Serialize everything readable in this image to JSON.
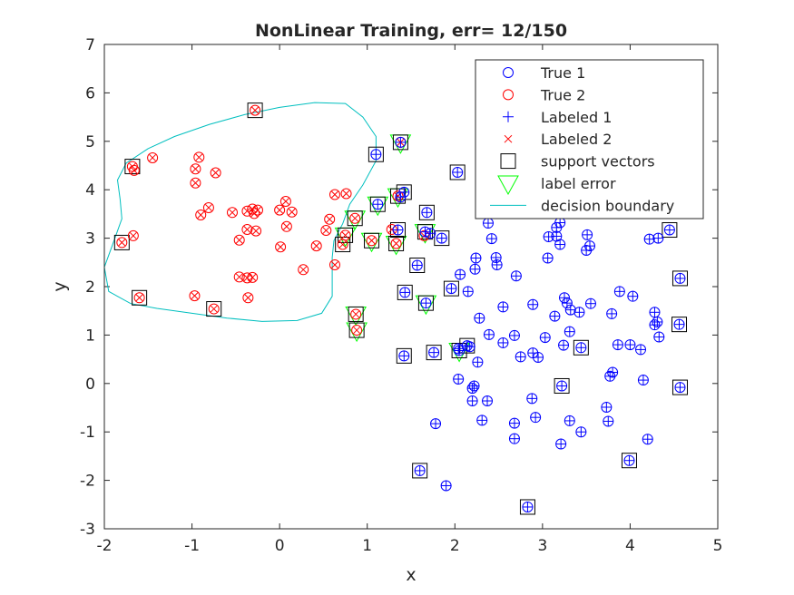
{
  "chart_data": {
    "type": "scatter",
    "title": "NonLinear Training, err= 12/150",
    "xlabel": "x",
    "ylabel": "y",
    "xlim": [
      -2,
      5
    ],
    "ylim": [
      -3,
      7
    ],
    "xticks": [
      -2,
      -1,
      0,
      1,
      2,
      3,
      4,
      5
    ],
    "yticks": [
      -3,
      -2,
      -1,
      0,
      1,
      2,
      3,
      4,
      5,
      6,
      7
    ],
    "legend_position": "top-right",
    "colors": {
      "class1": "#0000ff",
      "class2": "#ff0000",
      "support": "#000000",
      "error": "#00ff00",
      "boundary": "#00bfbf"
    },
    "legend": [
      {
        "label": "True 1",
        "marker": "circle",
        "color": "#0000ff"
      },
      {
        "label": "True 2",
        "marker": "circle",
        "color": "#ff0000"
      },
      {
        "label": "Labeled 1",
        "marker": "plus",
        "color": "#0000ff"
      },
      {
        "label": "Labeled 2",
        "marker": "cross",
        "color": "#ff0000"
      },
      {
        "label": "support vectors",
        "marker": "square",
        "color": "#000000"
      },
      {
        "label": "label error",
        "marker": "triangle-down",
        "color": "#00ff00"
      },
      {
        "label": "decision boundary",
        "marker": "line",
        "color": "#00bfbf"
      }
    ],
    "series": [
      {
        "name": "True 2",
        "points": [
          [
            -1.68,
            4.48
          ],
          [
            -1.66,
            4.4
          ],
          [
            -1.45,
            4.66
          ],
          [
            -1.8,
            2.91
          ],
          [
            -1.67,
            3.05
          ],
          [
            -1.6,
            1.77
          ],
          [
            -0.92,
            4.67
          ],
          [
            -0.96,
            4.43
          ],
          [
            -0.96,
            4.14
          ],
          [
            -0.73,
            4.35
          ],
          [
            -0.81,
            3.63
          ],
          [
            -0.9,
            3.48
          ],
          [
            -0.97,
            1.81
          ],
          [
            -0.75,
            1.54
          ],
          [
            -0.54,
            3.53
          ],
          [
            -0.28,
            5.64
          ],
          [
            -0.37,
            3.56
          ],
          [
            -0.31,
            3.6
          ],
          [
            -0.29,
            3.51
          ],
          [
            -0.25,
            3.58
          ],
          [
            -0.37,
            3.18
          ],
          [
            -0.27,
            3.15
          ],
          [
            -0.46,
            2.96
          ],
          [
            -0.46,
            2.2
          ],
          [
            -0.37,
            2.18
          ],
          [
            -0.31,
            2.19
          ],
          [
            -0.36,
            1.77
          ],
          [
            0.0,
            3.58
          ],
          [
            0.07,
            3.76
          ],
          [
            0.14,
            3.54
          ],
          [
            0.08,
            3.24
          ],
          [
            0.01,
            2.82
          ],
          [
            0.27,
            2.35
          ],
          [
            0.42,
            2.84
          ],
          [
            0.53,
            3.16
          ],
          [
            0.57,
            3.39
          ],
          [
            0.63,
            2.45
          ],
          [
            0.63,
            3.9
          ],
          [
            0.76,
            3.92
          ],
          [
            0.72,
            2.87
          ],
          [
            0.75,
            3.06
          ],
          [
            0.86,
            3.41
          ],
          [
            1.05,
            2.95
          ],
          [
            0.87,
            1.43
          ],
          [
            0.88,
            1.1
          ],
          [
            1.35,
            3.87
          ],
          [
            1.33,
            2.89
          ],
          [
            1.28,
            3.18
          ],
          [
            1.65,
            3.05
          ],
          [
            1.38,
            4.98
          ]
        ]
      },
      {
        "name": "True 1",
        "points": [
          [
            1.1,
            4.73
          ],
          [
            1.12,
            3.7
          ],
          [
            1.38,
            3.85
          ],
          [
            1.42,
            3.95
          ],
          [
            1.68,
            3.53
          ],
          [
            1.35,
            3.17
          ],
          [
            1.66,
            3.13
          ],
          [
            1.72,
            3.1
          ],
          [
            1.85,
            3.0
          ],
          [
            1.43,
            1.88
          ],
          [
            1.57,
            2.44
          ],
          [
            1.42,
            0.57
          ],
          [
            1.67,
            1.66
          ],
          [
            1.78,
            -0.83
          ],
          [
            1.9,
            -2.11
          ],
          [
            1.6,
            -1.8
          ],
          [
            1.76,
            0.64
          ],
          [
            2.03,
            4.36
          ],
          [
            1.96,
            1.96
          ],
          [
            2.06,
            2.25
          ],
          [
            2.15,
            1.9
          ],
          [
            2.23,
            2.36
          ],
          [
            2.24,
            2.59
          ],
          [
            2.42,
            2.99
          ],
          [
            2.38,
            3.31
          ],
          [
            2.48,
            2.45
          ],
          [
            2.47,
            2.6
          ],
          [
            2.7,
            2.22
          ],
          [
            2.04,
            0.72
          ],
          [
            2.14,
            0.78
          ],
          [
            2.17,
            0.76
          ],
          [
            2.26,
            0.44
          ],
          [
            2.28,
            1.35
          ],
          [
            2.55,
            1.58
          ],
          [
            2.39,
            1.01
          ],
          [
            2.55,
            0.84
          ],
          [
            2.68,
            0.99
          ],
          [
            2.75,
            0.55
          ],
          [
            2.89,
            0.63
          ],
          [
            2.95,
            0.54
          ],
          [
            2.04,
            0.09
          ],
          [
            2.2,
            -0.1
          ],
          [
            2.22,
            -0.05
          ],
          [
            2.2,
            -0.36
          ],
          [
            2.37,
            -0.36
          ],
          [
            2.31,
            -0.76
          ],
          [
            2.68,
            -0.82
          ],
          [
            2.68,
            -1.14
          ],
          [
            2.88,
            -0.31
          ],
          [
            2.92,
            -0.7
          ],
          [
            2.83,
            -2.55
          ],
          [
            3.2,
            3.32
          ],
          [
            3.16,
            3.22
          ],
          [
            3.07,
            3.03
          ],
          [
            3.16,
            3.04
          ],
          [
            3.2,
            2.87
          ],
          [
            3.06,
            2.59
          ],
          [
            3.51,
            3.07
          ],
          [
            3.54,
            2.84
          ],
          [
            3.5,
            2.75
          ],
          [
            2.89,
            1.63
          ],
          [
            3.03,
            0.95
          ],
          [
            3.14,
            1.39
          ],
          [
            3.25,
            1.77
          ],
          [
            3.28,
            1.66
          ],
          [
            3.32,
            1.52
          ],
          [
            3.31,
            1.07
          ],
          [
            3.42,
            1.47
          ],
          [
            3.55,
            1.65
          ],
          [
            3.24,
            0.79
          ],
          [
            3.44,
            0.74
          ],
          [
            3.22,
            -0.05
          ],
          [
            3.31,
            -0.77
          ],
          [
            3.44,
            -1.0
          ],
          [
            3.21,
            -1.25
          ],
          [
            3.79,
            1.44
          ],
          [
            3.88,
            1.9
          ],
          [
            4.03,
            1.8
          ],
          [
            4.28,
            1.47
          ],
          [
            4.31,
            1.27
          ],
          [
            4.28,
            1.21
          ],
          [
            4.33,
            0.96
          ],
          [
            3.86,
            0.8
          ],
          [
            4.0,
            0.8
          ],
          [
            4.12,
            0.7
          ],
          [
            3.77,
            0.15
          ],
          [
            3.8,
            0.23
          ],
          [
            4.15,
            0.07
          ],
          [
            3.73,
            -0.49
          ],
          [
            3.75,
            -0.78
          ],
          [
            4.2,
            -1.15
          ],
          [
            3.99,
            -1.59
          ],
          [
            4.22,
            2.98
          ],
          [
            4.32,
            3.0
          ],
          [
            4.45,
            3.17
          ],
          [
            4.57,
            2.17
          ],
          [
            4.56,
            1.22
          ],
          [
            4.57,
            -0.08
          ],
          [
            2.05,
            0.68
          ],
          [
            1.38,
            4.98
          ]
        ]
      }
    ],
    "support_vectors": [
      [
        -1.68,
        4.48
      ],
      [
        -1.8,
        2.91
      ],
      [
        -1.6,
        1.77
      ],
      [
        -0.75,
        1.54
      ],
      [
        -0.28,
        5.64
      ],
      [
        0.88,
        1.1
      ],
      [
        0.87,
        1.43
      ],
      [
        0.86,
        3.41
      ],
      [
        0.72,
        2.87
      ],
      [
        0.75,
        3.06
      ],
      [
        1.05,
        2.95
      ],
      [
        1.1,
        4.73
      ],
      [
        1.12,
        3.7
      ],
      [
        1.38,
        4.98
      ],
      [
        1.35,
        3.87
      ],
      [
        1.42,
        3.95
      ],
      [
        1.33,
        2.89
      ],
      [
        1.35,
        3.17
      ],
      [
        1.68,
        3.53
      ],
      [
        1.66,
        3.13
      ],
      [
        1.85,
        3.0
      ],
      [
        1.57,
        2.44
      ],
      [
        1.43,
        1.88
      ],
      [
        1.67,
        1.66
      ],
      [
        1.42,
        0.57
      ],
      [
        1.76,
        0.64
      ],
      [
        1.6,
        -1.8
      ],
      [
        2.03,
        4.36
      ],
      [
        1.96,
        1.96
      ],
      [
        2.05,
        0.68
      ],
      [
        2.14,
        0.78
      ],
      [
        2.83,
        -2.55
      ],
      [
        3.44,
        0.74
      ],
      [
        3.22,
        -0.05
      ],
      [
        3.99,
        -1.59
      ],
      [
        4.45,
        3.17
      ],
      [
        4.57,
        2.17
      ],
      [
        4.56,
        1.22
      ],
      [
        4.57,
        -0.08
      ]
    ],
    "label_errors": [
      [
        1.38,
        4.98
      ],
      [
        1.12,
        3.7
      ],
      [
        1.35,
        3.87
      ],
      [
        0.86,
        3.41
      ],
      [
        0.75,
        3.06
      ],
      [
        1.05,
        2.95
      ],
      [
        1.33,
        2.89
      ],
      [
        1.66,
        3.13
      ],
      [
        1.67,
        1.66
      ],
      [
        0.87,
        1.43
      ],
      [
        0.88,
        1.1
      ],
      [
        2.05,
        0.68
      ]
    ],
    "decision_boundary": [
      [
        -1.5,
        4.85
      ],
      [
        -1.2,
        5.1
      ],
      [
        -0.8,
        5.35
      ],
      [
        -0.4,
        5.55
      ],
      [
        0.0,
        5.7
      ],
      [
        0.4,
        5.8
      ],
      [
        0.75,
        5.78
      ],
      [
        0.95,
        5.5
      ],
      [
        1.1,
        5.1
      ],
      [
        1.1,
        4.6
      ],
      [
        0.95,
        4.1
      ],
      [
        0.8,
        3.7
      ],
      [
        0.72,
        3.3
      ],
      [
        0.62,
        2.95
      ],
      [
        0.6,
        2.6
      ],
      [
        0.6,
        2.2
      ],
      [
        0.6,
        1.8
      ],
      [
        0.48,
        1.45
      ],
      [
        0.2,
        1.3
      ],
      [
        -0.2,
        1.28
      ],
      [
        -0.6,
        1.35
      ],
      [
        -1.0,
        1.45
      ],
      [
        -1.4,
        1.55
      ],
      [
        -1.7,
        1.65
      ],
      [
        -1.95,
        1.9
      ],
      [
        -2.0,
        2.4
      ],
      [
        -1.9,
        2.9
      ],
      [
        -1.8,
        3.4
      ],
      [
        -1.82,
        3.8
      ],
      [
        -1.85,
        4.2
      ],
      [
        -1.75,
        4.55
      ],
      [
        -1.5,
        4.85
      ]
    ]
  }
}
